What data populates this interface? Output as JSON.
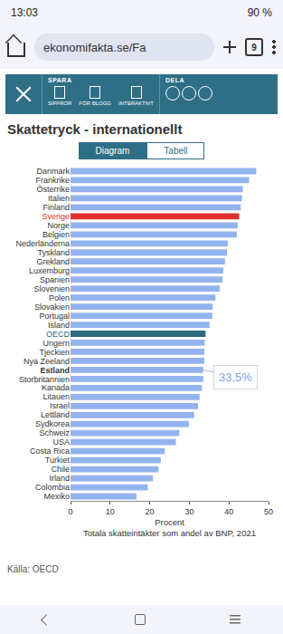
{
  "page": {
    "status_bar": {
      "time": "13:03",
      "battery": "90 %"
    },
    "browser": {
      "url": "ekonomifakta.se/Fa",
      "tab_count": "9"
    },
    "toolbar": {
      "save_heading": "SPARA",
      "save_items": [
        "SIFFROR",
        "FÖR BLOGG",
        "INTERAKTIVT"
      ],
      "share_heading": "DELA"
    },
    "tabs": [
      "Diagram",
      "Tabell"
    ],
    "active_tab": "Diagram",
    "source": "Källa: OECD"
  },
  "chart_data": {
    "type": "bar",
    "orientation": "horizontal",
    "title": "Skattetryck - internationellt",
    "xlabel": [
      "Procent",
      "Totala skatteintäkter som andel av BNP, 2021"
    ],
    "categories": [
      "Danmark",
      "Frankrike",
      "Österrike",
      "Italien",
      "Finland",
      "Sverige",
      "Norge",
      "Belgien",
      "Nederländerna",
      "Tyskland",
      "Grekland",
      "Luxemburg",
      "Spanien",
      "Slovenien",
      "Polen",
      "Slovakien",
      "Portugal",
      "Island",
      "OECD",
      "Ungern",
      "Tjeckien",
      "Nya Zeeland",
      "Estland",
      "Storbritannien",
      "Kanada",
      "Litauen",
      "Israel",
      "Lettland",
      "Sydkorea",
      "Schweiz",
      "USA",
      "Costa Rica",
      "Turkiet",
      "Chile",
      "Irland",
      "Colombia",
      "Mexiko"
    ],
    "values": [
      46.9,
      45.1,
      43.5,
      43.3,
      43.0,
      42.6,
      42.2,
      42.0,
      39.7,
      39.5,
      39.0,
      38.6,
      38.4,
      37.7,
      36.6,
      35.9,
      35.8,
      35.1,
      34.1,
      33.9,
      33.8,
      33.8,
      33.5,
      33.5,
      33.2,
      32.6,
      32.2,
      31.2,
      29.9,
      27.5,
      26.6,
      23.8,
      22.8,
      22.2,
      20.8,
      19.5,
      16.7
    ],
    "color": "#92b3ee",
    "colors": [
      "#92b3ee",
      "#92b3ee",
      "#92b3ee",
      "#92b3ee",
      "#92b3ee",
      "#e0302b",
      "#92b3ee",
      "#92b3ee",
      "#92b3ee",
      "#92b3ee",
      "#92b3ee",
      "#92b3ee",
      "#92b3ee",
      "#92b3ee",
      "#92b3ee",
      "#92b3ee",
      "#92b3ee",
      "#92b3ee",
      "#2d6a7e",
      "#92b3ee",
      "#92b3ee",
      "#92b3ee",
      "#92b3ee",
      "#92b3ee",
      "#92b3ee",
      "#92b3ee",
      "#92b3ee",
      "#92b3ee",
      "#92b3ee",
      "#92b3ee",
      "#92b3ee",
      "#92b3ee",
      "#92b3ee",
      "#92b3ee",
      "#92b3ee",
      "#92b3ee",
      "#92b3ee"
    ],
    "xlim": [
      0,
      50
    ],
    "xticks": [
      0,
      10,
      20,
      30,
      40,
      50
    ],
    "grid": false,
    "annotations": [
      {
        "category": "Estland",
        "value": 33.5,
        "text": "33,5%"
      }
    ]
  }
}
